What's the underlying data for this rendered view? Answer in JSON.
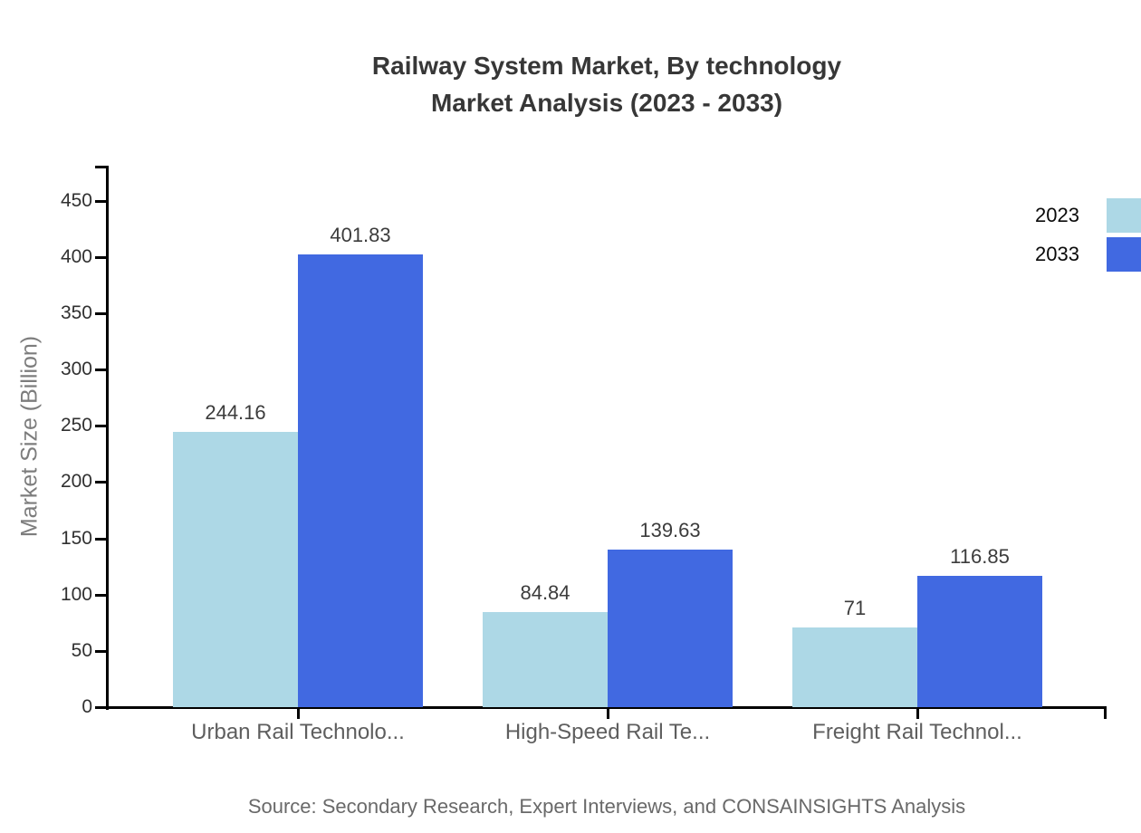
{
  "chart_data": {
    "type": "bar",
    "title": "Railway System Market, By technology",
    "subtitle": "Market Analysis (2023 - 2033)",
    "ylabel": "Market Size (Billion)",
    "xlabel": "",
    "categories": [
      "Urban Rail Technolo...",
      "High-Speed Rail Te...",
      "Freight Rail Technol..."
    ],
    "series": [
      {
        "name": "2023",
        "color": "#ADD8E6",
        "values": [
          244.16,
          84.84,
          71
        ],
        "labels": [
          "244.16",
          "84.84",
          "71"
        ]
      },
      {
        "name": "2033",
        "color": "#4169E1",
        "values": [
          401.83,
          139.63,
          116.85
        ],
        "labels": [
          "401.83",
          "139.63",
          "116.85"
        ]
      }
    ],
    "yticks": [
      0,
      50,
      100,
      150,
      200,
      250,
      300,
      350,
      400,
      450
    ],
    "ylim": [
      0,
      481
    ],
    "grid": false,
    "legend_position": "top-right",
    "source": "Source: Secondary Research, Expert Interviews, and CONSAINSIGHTS Analysis"
  }
}
